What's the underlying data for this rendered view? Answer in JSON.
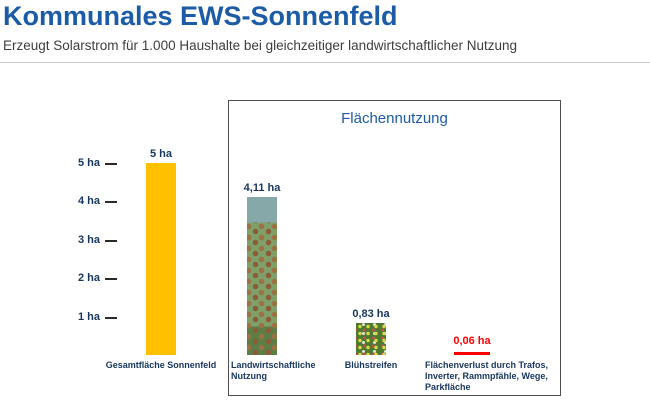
{
  "header": {
    "title": "Kommunales EWS-Sonnenfeld",
    "subtitle": "Erzeugt Solarstrom für 1.000 Haushalte bei gleichzeitiger landwirtschaftlicher Nutzung"
  },
  "chart_data": {
    "type": "bar",
    "title": "Flächennutzung",
    "categories": [
      "Gesamtfläche Sonnenfeld",
      "Landwirtschaftliche Nutzung",
      "Blühstreifen",
      "Flächenverlust durch Trafos, Inverter, Rammpfähle, Wege, Parkfläche"
    ],
    "values": [
      5,
      4.11,
      0.83,
      0.06
    ],
    "value_labels": [
      "5 ha",
      "4,11 ha",
      "0,83 ha",
      "0,06 ha"
    ],
    "unit": "ha",
    "ytick_labels": [
      "5 ha",
      "4 ha",
      "3 ha",
      "2 ha",
      "1 ha"
    ],
    "ytick_values": [
      5,
      4,
      3,
      2,
      1
    ],
    "ylim": [
      0,
      5.2
    ],
    "grid": "off",
    "legend": "none",
    "box_label": "Flächennutzung",
    "colors": {
      "bar_total": "#ffc000",
      "bar_loss": "#ff0000",
      "value_label": "#17365d",
      "title_blue": "#1c5ba6"
    }
  }
}
